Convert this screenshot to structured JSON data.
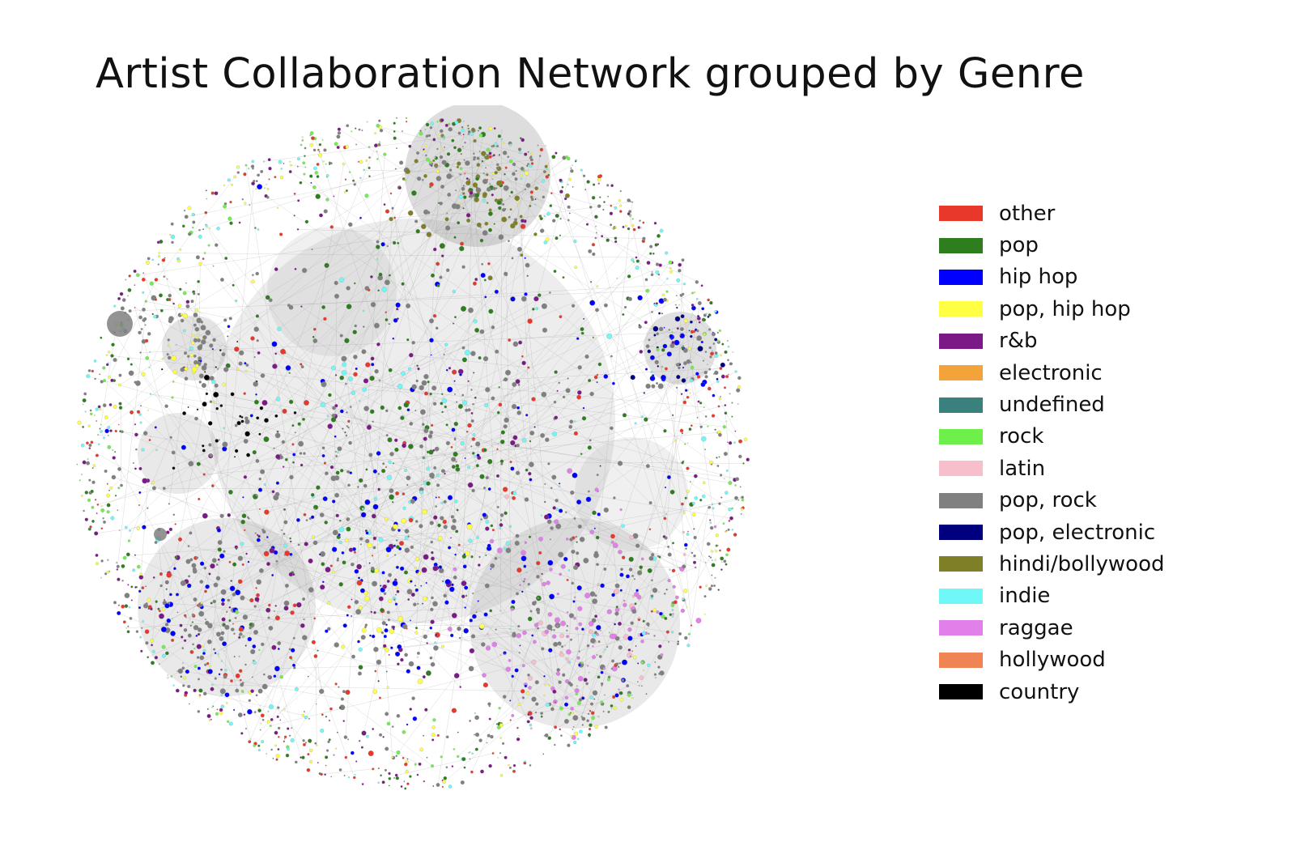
{
  "title": "Artist Collaboration Network grouped by Genre",
  "legend": [
    {
      "label": "other",
      "color": "#e8382b"
    },
    {
      "label": "pop",
      "color": "#2e7d1e"
    },
    {
      "label": "hip hop",
      "color": "#0000ff"
    },
    {
      "label": "pop, hip hop",
      "color": "#ffff44"
    },
    {
      "label": "r&b",
      "color": "#7b1a86"
    },
    {
      "label": "electronic",
      "color": "#f2a33a"
    },
    {
      "label": "undefined",
      "color": "#3a807d"
    },
    {
      "label": "rock",
      "color": "#6ef04a"
    },
    {
      "label": "latin",
      "color": "#f7bfcb"
    },
    {
      "label": "pop, rock",
      "color": "#808080"
    },
    {
      "label": "pop, electronic",
      "color": "#00007e"
    },
    {
      "label": "hindi/bollywood",
      "color": "#7f7f28"
    },
    {
      "label": "indie",
      "color": "#70f7f7"
    },
    {
      "label": "raggae",
      "color": "#e080e8"
    },
    {
      "label": "hollywood",
      "color": "#ef8454"
    },
    {
      "label": "country",
      "color": "#000000"
    }
  ],
  "edge_color": "#8a8a8a",
  "node_outline_color": "#9a9a9a"
}
